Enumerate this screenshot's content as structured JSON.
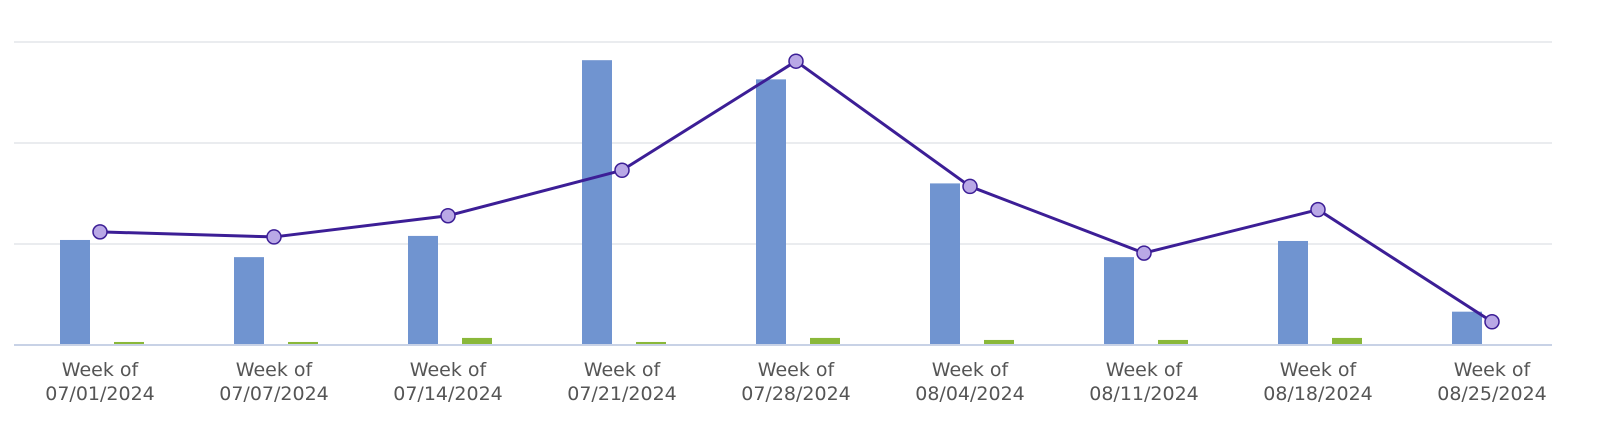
{
  "chart_data": {
    "type": "bar",
    "categories": [
      [
        "Week of",
        "07/01/2024"
      ],
      [
        "Week of",
        "07/07/2024"
      ],
      [
        "Week of",
        "07/14/2024"
      ],
      [
        "Week of",
        "07/21/2024"
      ],
      [
        "Week of",
        "07/28/2024"
      ],
      [
        "Week of",
        "08/04/2024"
      ],
      [
        "Week of",
        "08/11/2024"
      ],
      [
        "Week of",
        "08/18/2024"
      ],
      [
        "Week of",
        "08/25/2024"
      ]
    ],
    "ylim": [
      0,
      30
    ],
    "grid": true,
    "gridlines": [
      10,
      20,
      30
    ],
    "series": [
      {
        "type": "bar",
        "color": "#7094d0",
        "values": [
          10.4,
          8.7,
          10.8,
          28.2,
          26.3,
          16.0,
          8.7,
          10.3,
          3.3
        ]
      },
      {
        "type": "bar",
        "color": "#8ab83a",
        "values": [
          0.3,
          0.3,
          0.7,
          0.3,
          0.7,
          0.5,
          0.5,
          0.7,
          0.0
        ]
      },
      {
        "type": "line",
        "color": "#3c1e96",
        "marker_color": "#b9a8e6",
        "values": [
          11.2,
          10.7,
          12.8,
          17.3,
          28.1,
          15.7,
          9.1,
          13.4,
          2.3
        ]
      }
    ]
  }
}
